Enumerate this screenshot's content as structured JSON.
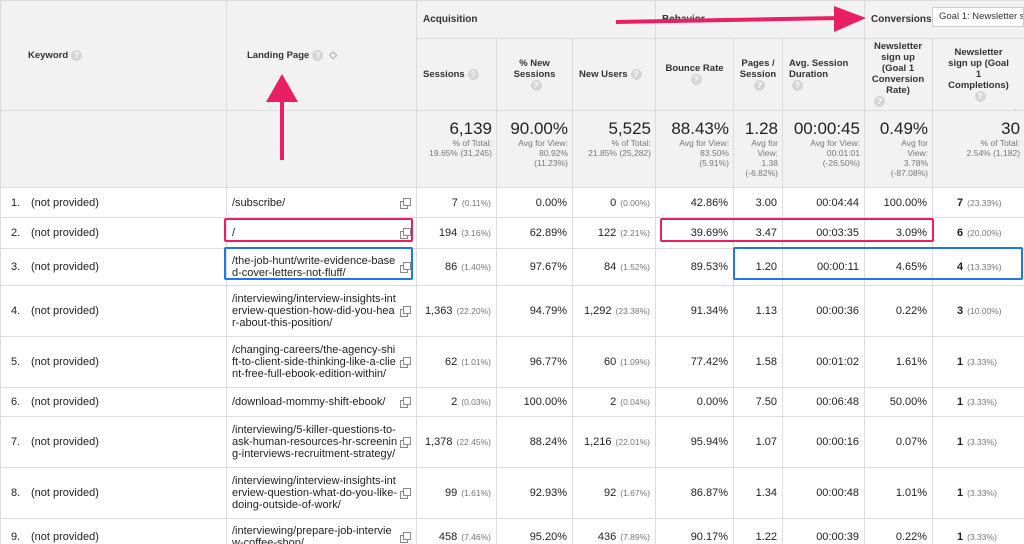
{
  "columns": {
    "keyword": "Keyword",
    "landing_page": "Landing Page",
    "acquisition": "Acquisition",
    "behavior": "Behavior",
    "conversions": "Conversions",
    "goal_select": "Goal 1: Newsletter s",
    "sessions": "Sessions",
    "pct_new_sessions": "% New Sessions",
    "new_users": "New Users",
    "bounce_rate": "Bounce Rate",
    "pages_session": "Pages / Session",
    "avg_session_duration": "Avg. Session Duration",
    "conv_rate": "Newsletter sign up (Goal 1 Conversion Rate)",
    "completions": "Newsletter sign up (Goal 1 Completions)"
  },
  "totals": {
    "sessions": "6,139",
    "sessions_sub1": "% of Total:",
    "sessions_sub2": "19.65% (31,245)",
    "pct_new": "90.00%",
    "pct_new_sub1": "Avg for View:",
    "pct_new_sub2": "80.92%",
    "pct_new_sub3": "(11.23%)",
    "new_users": "5,525",
    "new_users_sub1": "% of Total:",
    "new_users_sub2": "21.85% (25,282)",
    "bounce": "88.43%",
    "bounce_sub1": "Avg for View:",
    "bounce_sub2": "83.50%",
    "bounce_sub3": "(5.91%)",
    "pages": "1.28",
    "pages_sub1": "Avg for",
    "pages_sub2": "View:",
    "pages_sub3": "1.38",
    "pages_sub4": "(-6.82%)",
    "duration": "00:00:45",
    "duration_sub1": "Avg for View:",
    "duration_sub2": "00:01:01",
    "duration_sub3": "(-26.50%)",
    "conv": "0.49%",
    "conv_sub1": "Avg for",
    "conv_sub2": "View:",
    "conv_sub3": "3.78%",
    "conv_sub4": "(-87.08%)",
    "compl": "30",
    "compl_sub1": "% of Total:",
    "compl_sub2": "2.54% (1,182)"
  },
  "rows": [
    {
      "idx": "1.",
      "keyword": "(not provided)",
      "page": "/subscribe/",
      "sessions": "7",
      "sessions_pct": "(0.11%)",
      "pct_new": "0.00%",
      "new_users": "0",
      "new_users_pct": "(0.00%)",
      "bounce": "42.86%",
      "pages": "3.00",
      "duration": "00:04:44",
      "conv": "100.00%",
      "compl": "7",
      "compl_pct": "(23.33%)"
    },
    {
      "idx": "2.",
      "keyword": "(not provided)",
      "page": "/",
      "sessions": "194",
      "sessions_pct": "(3.16%)",
      "pct_new": "62.89%",
      "new_users": "122",
      "new_users_pct": "(2.21%)",
      "bounce": "39.69%",
      "pages": "3.47",
      "duration": "00:03:35",
      "conv": "3.09%",
      "compl": "6",
      "compl_pct": "(20.00%)"
    },
    {
      "idx": "3.",
      "keyword": "(not provided)",
      "page": "/the-job-hunt/write-evidence-based-cover-letters-not-fluff/",
      "sessions": "86",
      "sessions_pct": "(1.40%)",
      "pct_new": "97.67%",
      "new_users": "84",
      "new_users_pct": "(1.52%)",
      "bounce": "89.53%",
      "pages": "1.20",
      "duration": "00:00:11",
      "conv": "4.65%",
      "compl": "4",
      "compl_pct": "(13.33%)"
    },
    {
      "idx": "4.",
      "keyword": "(not provided)",
      "page": "/interviewing/interview-insights-interview-question-how-did-you-hear-about-this-position/",
      "sessions": "1,363",
      "sessions_pct": "(22.20%)",
      "pct_new": "94.79%",
      "new_users": "1,292",
      "new_users_pct": "(23.38%)",
      "bounce": "91.34%",
      "pages": "1.13",
      "duration": "00:00:36",
      "conv": "0.22%",
      "compl": "3",
      "compl_pct": "(10.00%)"
    },
    {
      "idx": "5.",
      "keyword": "(not provided)",
      "page": "/changing-careers/the-agency-shift-to-client-side-thinking-like-a-client-free-full-ebook-edition-within/",
      "sessions": "62",
      "sessions_pct": "(1.01%)",
      "pct_new": "96.77%",
      "new_users": "60",
      "new_users_pct": "(1.09%)",
      "bounce": "77.42%",
      "pages": "1.58",
      "duration": "00:01:02",
      "conv": "1.61%",
      "compl": "1",
      "compl_pct": "(3.33%)"
    },
    {
      "idx": "6.",
      "keyword": "(not provided)",
      "page": "/download-mommy-shift-ebook/",
      "sessions": "2",
      "sessions_pct": "(0.03%)",
      "pct_new": "100.00%",
      "new_users": "2",
      "new_users_pct": "(0.04%)",
      "bounce": "0.00%",
      "pages": "7.50",
      "duration": "00:06:48",
      "conv": "50.00%",
      "compl": "1",
      "compl_pct": "(3.33%)"
    },
    {
      "idx": "7.",
      "keyword": "(not provided)",
      "page": "/interviewing/5-killer-questions-to-ask-human-resources-hr-screening-interviews-recruitment-strategy/",
      "sessions": "1,378",
      "sessions_pct": "(22.45%)",
      "pct_new": "88.24%",
      "new_users": "1,216",
      "new_users_pct": "(22.01%)",
      "bounce": "95.94%",
      "pages": "1.07",
      "duration": "00:00:16",
      "conv": "0.07%",
      "compl": "1",
      "compl_pct": "(3.33%)"
    },
    {
      "idx": "8.",
      "keyword": "(not provided)",
      "page": "/interviewing/interview-insights-interview-question-what-do-you-like-doing-outside-of-work/",
      "sessions": "99",
      "sessions_pct": "(1.61%)",
      "pct_new": "92.93%",
      "new_users": "92",
      "new_users_pct": "(1.67%)",
      "bounce": "86.87%",
      "pages": "1.34",
      "duration": "00:00:48",
      "conv": "1.01%",
      "compl": "1",
      "compl_pct": "(3.33%)"
    },
    {
      "idx": "9.",
      "keyword": "(not provided)",
      "page": "/interviewing/prepare-job-interview-coffee-shop/",
      "sessions": "458",
      "sessions_pct": "(7.46%)",
      "pct_new": "95.20%",
      "new_users": "436",
      "new_users_pct": "(7.89%)",
      "bounce": "90.17%",
      "pages": "1.22",
      "duration": "00:00:39",
      "conv": "0.22%",
      "compl": "1",
      "compl_pct": "(3.33%)"
    }
  ],
  "colors": {
    "highlight_red": "#e91e63",
    "highlight_blue": "#1e78e6",
    "header_bg": "#f2f2f2"
  },
  "icons": {
    "help": "help-icon",
    "copy": "copy-link-icon",
    "sort": "sort-desc-icon"
  }
}
